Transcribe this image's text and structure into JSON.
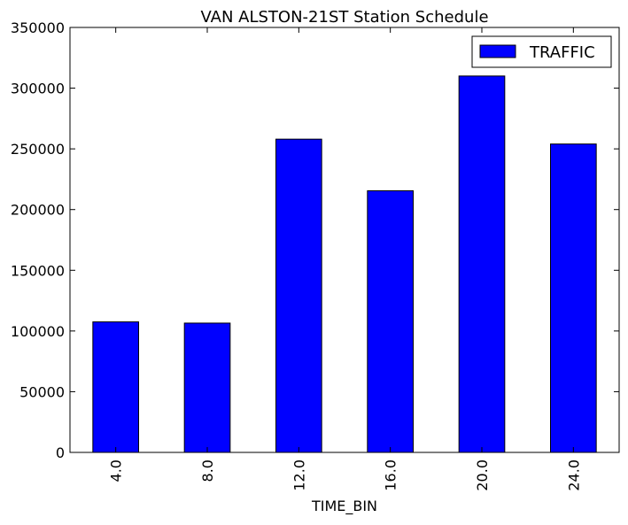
{
  "chart_data": {
    "type": "bar",
    "title": "VAN ALSTON-21ST Station Schedule",
    "xlabel": "TIME_BIN",
    "ylabel": "",
    "categories": [
      "4.0",
      "8.0",
      "12.0",
      "16.0",
      "20.0",
      "24.0"
    ],
    "series": [
      {
        "name": "TRAFFIC",
        "values": [
          107500,
          106500,
          258000,
          215500,
          310000,
          254000
        ],
        "color": "#0000ff"
      }
    ],
    "ylim": [
      0,
      350000
    ],
    "yticks": [
      0,
      50000,
      100000,
      150000,
      200000,
      250000,
      300000,
      350000
    ],
    "grid": false,
    "legend_position": "top-right"
  }
}
